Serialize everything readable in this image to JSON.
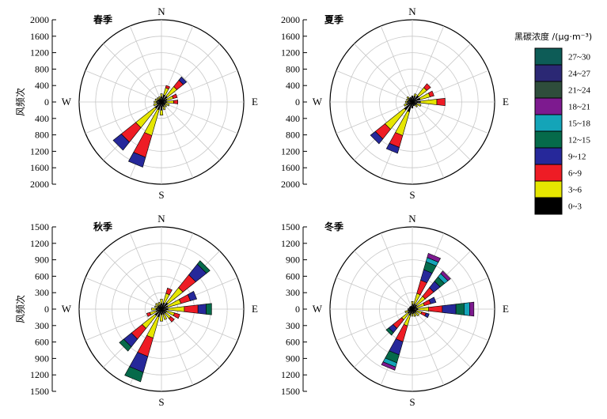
{
  "legend": {
    "title": "黑碳浓度 /(μg·m⁻³)",
    "bins": [
      {
        "label": "0~3",
        "color": "#000000"
      },
      {
        "label": "3~6",
        "color": "#e6e600"
      },
      {
        "label": "6~9",
        "color": "#ee1c25"
      },
      {
        "label": "9~12",
        "color": "#26289a"
      },
      {
        "label": "12~15",
        "color": "#056a4a"
      },
      {
        "label": "15~18",
        "color": "#14a4b8"
      },
      {
        "label": "18~21",
        "color": "#7d1a8f"
      },
      {
        "label": "21~24",
        "color": "#2e4d3b"
      },
      {
        "label": "24~27",
        "color": "#2b2874"
      },
      {
        "label": "27~30",
        "color": "#0d5c57"
      }
    ]
  },
  "y_axis_label": "风频次",
  "directions": {
    "n": "N",
    "e": "E",
    "s": "S",
    "w": "W"
  },
  "chart_data": [
    {
      "type": "wind-rose",
      "title": "春季",
      "ylim": [
        0,
        2000
      ],
      "ticks": [
        "2000",
        "1600",
        "1200",
        "800",
        "400",
        "0",
        "400",
        "800",
        "1200",
        "1600",
        "2000"
      ],
      "tick_values": [
        2000,
        1600,
        1200,
        800,
        400,
        0,
        400,
        800,
        1200,
        1600,
        2000
      ],
      "rings": [
        400,
        800,
        1200,
        1600,
        2000
      ],
      "petals": [
        {
          "dir": 0,
          "counts": [
            120,
            80,
            0,
            0
          ]
        },
        {
          "dir": 22.5,
          "counts": [
            180,
            180,
            60,
            0
          ]
        },
        {
          "dir": 45,
          "counts": [
            180,
            300,
            200,
            100
          ]
        },
        {
          "dir": 67.5,
          "counts": [
            140,
            160,
            100,
            0
          ]
        },
        {
          "dir": 90,
          "counts": [
            120,
            180,
            100,
            0
          ]
        },
        {
          "dir": 112.5,
          "counts": [
            100,
            100,
            0,
            0
          ]
        },
        {
          "dir": 135,
          "counts": [
            100,
            60,
            0,
            0
          ]
        },
        {
          "dir": 157.5,
          "counts": [
            120,
            80,
            0,
            0
          ]
        },
        {
          "dir": 180,
          "counts": [
            200,
            120,
            0,
            0
          ]
        },
        {
          "dir": 202.5,
          "counts": [
            200,
            650,
            550,
            250
          ]
        },
        {
          "dir": 225,
          "counts": [
            200,
            600,
            450,
            250
          ]
        },
        {
          "dir": 247.5,
          "counts": [
            120,
            80,
            0,
            0
          ]
        },
        {
          "dir": 270,
          "counts": [
            120,
            60,
            0,
            0
          ]
        },
        {
          "dir": 292.5,
          "counts": [
            100,
            60,
            0,
            0
          ]
        },
        {
          "dir": 315,
          "counts": [
            80,
            60,
            0,
            0
          ]
        },
        {
          "dir": 337.5,
          "counts": [
            80,
            60,
            0,
            0
          ]
        }
      ]
    },
    {
      "type": "wind-rose",
      "title": "夏季",
      "ylim": [
        0,
        2000
      ],
      "ticks": [
        "2000",
        "1600",
        "1200",
        "800",
        "400",
        "0",
        "400",
        "800",
        "1200",
        "1600",
        "2000"
      ],
      "tick_values": [
        2000,
        1600,
        1200,
        800,
        400,
        0,
        400,
        800,
        1200,
        1600,
        2000
      ],
      "rings": [
        400,
        800,
        1200,
        1600,
        2000
      ],
      "petals": [
        {
          "dir": 0,
          "counts": [
            150,
            0,
            0,
            0
          ]
        },
        {
          "dir": 22.5,
          "counts": [
            150,
            60,
            0,
            0
          ]
        },
        {
          "dir": 45,
          "counts": [
            200,
            250,
            120,
            0
          ]
        },
        {
          "dir": 67.5,
          "counts": [
            200,
            250,
            100,
            0
          ]
        },
        {
          "dir": 90,
          "counts": [
            200,
            400,
            200,
            0
          ]
        },
        {
          "dir": 112.5,
          "counts": [
            120,
            100,
            0,
            0
          ]
        },
        {
          "dir": 135,
          "counts": [
            100,
            60,
            0,
            0
          ]
        },
        {
          "dir": 157.5,
          "counts": [
            100,
            0,
            0,
            0
          ]
        },
        {
          "dir": 180,
          "counts": [
            150,
            0,
            0,
            0
          ]
        },
        {
          "dir": 202.5,
          "counts": [
            250,
            600,
            300,
            150
          ]
        },
        {
          "dir": 225,
          "counts": [
            250,
            600,
            300,
            150
          ]
        },
        {
          "dir": 247.5,
          "counts": [
            150,
            60,
            0,
            0
          ]
        },
        {
          "dir": 270,
          "counts": [
            120,
            50,
            0,
            0
          ]
        },
        {
          "dir": 292.5,
          "counts": [
            100,
            50,
            0,
            0
          ]
        },
        {
          "dir": 315,
          "counts": [
            120,
            50,
            0,
            0
          ]
        },
        {
          "dir": 337.5,
          "counts": [
            120,
            0,
            0,
            0
          ]
        }
      ]
    },
    {
      "type": "wind-rose",
      "title": "秋季",
      "ylim": [
        0,
        1500
      ],
      "ticks": [
        "1500",
        "1200",
        "900",
        "600",
        "300",
        "0",
        "300",
        "600",
        "900",
        "1200",
        "1500"
      ],
      "tick_values": [
        1500,
        1200,
        900,
        600,
        300,
        0,
        300,
        600,
        900,
        1200,
        1500
      ],
      "rings": [
        300,
        600,
        900,
        1200,
        1500
      ],
      "petals": [
        {
          "dir": 0,
          "counts": [
            100,
            80,
            0,
            0,
            0
          ]
        },
        {
          "dir": 22.5,
          "counts": [
            120,
            180,
            100,
            0,
            0
          ]
        },
        {
          "dir": 45,
          "counts": [
            150,
            350,
            300,
            250,
            80
          ]
        },
        {
          "dir": 67.5,
          "counts": [
            120,
            250,
            180,
            120,
            0
          ]
        },
        {
          "dir": 90,
          "counts": [
            120,
            300,
            250,
            150,
            100
          ]
        },
        {
          "dir": 112.5,
          "counts": [
            100,
            150,
            100,
            0,
            0
          ]
        },
        {
          "dir": 135,
          "counts": [
            100,
            120,
            80,
            0,
            0
          ]
        },
        {
          "dir": 157.5,
          "counts": [
            100,
            100,
            0,
            0,
            0
          ]
        },
        {
          "dir": 180,
          "counts": [
            100,
            120,
            0,
            0,
            0
          ]
        },
        {
          "dir": 202.5,
          "counts": [
            150,
            400,
            350,
            300,
            180
          ]
        },
        {
          "dir": 225,
          "counts": [
            150,
            300,
            250,
            180,
            100
          ]
        },
        {
          "dir": 247.5,
          "counts": [
            100,
            120,
            60,
            0,
            0
          ]
        },
        {
          "dir": 270,
          "counts": [
            100,
            80,
            0,
            0,
            0
          ]
        },
        {
          "dir": 292.5,
          "counts": [
            80,
            50,
            0,
            0,
            0
          ]
        },
        {
          "dir": 315,
          "counts": [
            80,
            60,
            0,
            0,
            0
          ]
        },
        {
          "dir": 337.5,
          "counts": [
            80,
            50,
            0,
            0,
            0
          ]
        }
      ]
    },
    {
      "type": "wind-rose",
      "title": "冬季",
      "ylim": [
        0,
        1500
      ],
      "ticks": [
        "1500",
        "1200",
        "900",
        "600",
        "300",
        "0",
        "300",
        "600",
        "900",
        "1200",
        "1500"
      ],
      "tick_values": [
        1500,
        1200,
        900,
        600,
        300,
        0,
        300,
        600,
        900,
        1200,
        1500
      ],
      "rings": [
        300,
        600,
        900,
        1200,
        1500
      ],
      "petals": [
        {
          "dir": 0,
          "counts": [
            80,
            60,
            0,
            0,
            0,
            0,
            0,
            0,
            0,
            0
          ]
        },
        {
          "dir": 22.5,
          "counts": [
            100,
            200,
            250,
            200,
            150,
            80,
            80,
            0,
            0,
            0
          ]
        },
        {
          "dir": 45,
          "counts": [
            100,
            200,
            200,
            150,
            100,
            80,
            60,
            0,
            0,
            0
          ]
        },
        {
          "dir": 67.5,
          "counts": [
            80,
            150,
            120,
            100,
            0,
            0,
            0,
            0,
            0,
            0
          ]
        },
        {
          "dir": 90,
          "counts": [
            100,
            200,
            250,
            250,
            150,
            100,
            80,
            0,
            0,
            0
          ]
        },
        {
          "dir": 112.5,
          "counts": [
            80,
            100,
            80,
            60,
            0,
            0,
            0,
            0,
            0,
            0
          ]
        },
        {
          "dir": 135,
          "counts": [
            80,
            80,
            0,
            0,
            0,
            0,
            0,
            0,
            0,
            0
          ]
        },
        {
          "dir": 157.5,
          "counts": [
            80,
            60,
            0,
            0,
            0,
            0,
            0,
            0,
            0,
            0
          ]
        },
        {
          "dir": 180,
          "counts": [
            80,
            50,
            0,
            0,
            0,
            0,
            0,
            0,
            0,
            0
          ]
        },
        {
          "dir": 202.5,
          "counts": [
            120,
            200,
            300,
            250,
            150,
            80,
            60,
            0,
            0,
            0
          ]
        },
        {
          "dir": 225,
          "counts": [
            100,
            150,
            200,
            100,
            60,
            0,
            0,
            0,
            0,
            0
          ]
        },
        {
          "dir": 247.5,
          "counts": [
            80,
            60,
            0,
            0,
            0,
            0,
            0,
            0,
            0,
            0
          ]
        },
        {
          "dir": 270,
          "counts": [
            80,
            0,
            0,
            0,
            0,
            0,
            0,
            0,
            0,
            0
          ]
        },
        {
          "dir": 292.5,
          "counts": [
            60,
            0,
            0,
            0,
            0,
            0,
            0,
            0,
            0,
            0
          ]
        },
        {
          "dir": 315,
          "counts": [
            60,
            0,
            0,
            0,
            0,
            0,
            0,
            0,
            0,
            0
          ]
        },
        {
          "dir": 337.5,
          "counts": [
            60,
            0,
            0,
            0,
            0,
            0,
            0,
            0,
            0,
            0
          ]
        }
      ]
    }
  ]
}
